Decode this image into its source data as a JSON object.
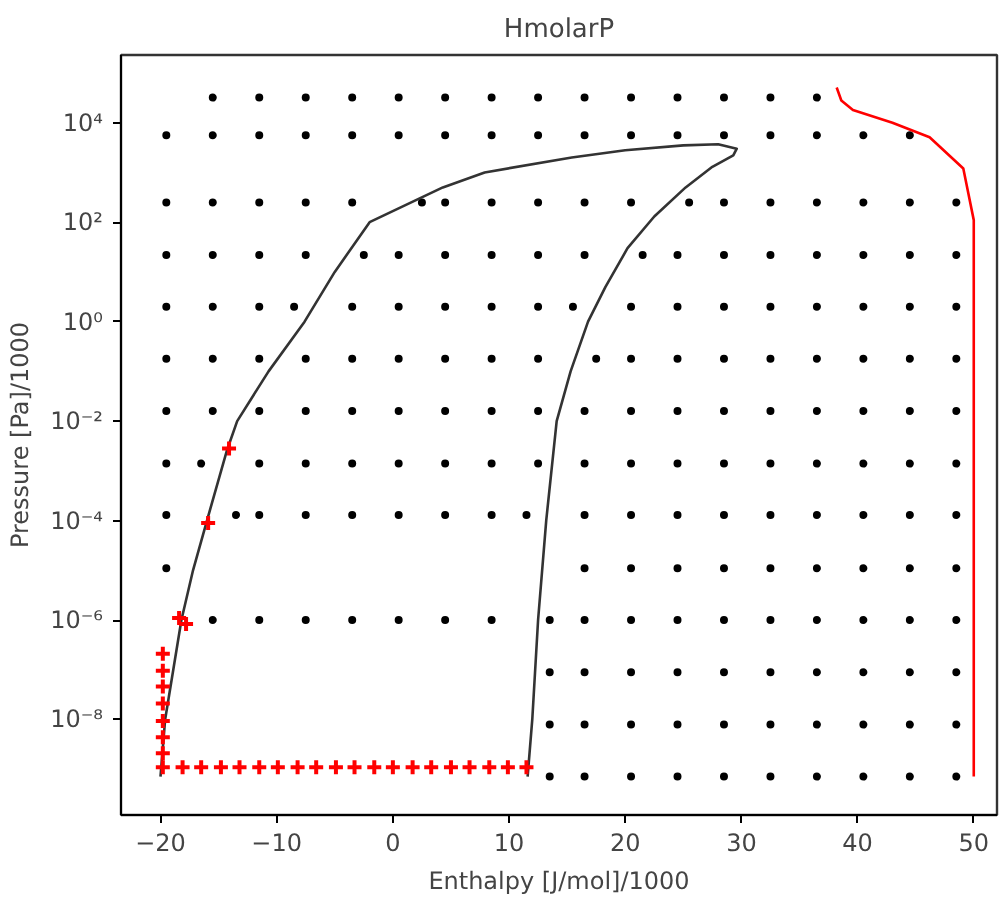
{
  "chart_data": {
    "type": "line",
    "title": "HmolarP",
    "xlabel": "Enthalpy [J/mol]/1000",
    "ylabel": "Pressure [Pa]/1000",
    "log": "y",
    "grid": false,
    "xlim": [
      -23.4,
      52.0
    ],
    "ylim": [
      1.2e-10,
      230000.0
    ],
    "xticks": [
      {
        "value": -20,
        "label": "−20"
      },
      {
        "value": -10,
        "label": "−10"
      },
      0,
      10,
      20,
      30,
      40,
      50
    ],
    "yticks": [
      {
        "value": 1e-08,
        "label": "10⁻⁸"
      },
      {
        "value": 1e-06,
        "label": "10⁻⁶"
      },
      {
        "value": 0.0001,
        "label": "10⁻⁴"
      },
      {
        "value": 0.01,
        "label": "10⁻²"
      },
      {
        "value": 1,
        "label": "10⁰"
      },
      {
        "value": 100,
        "label": "10²"
      },
      {
        "value": 10000,
        "label": "10⁴"
      }
    ],
    "series": [
      {
        "type": "scatter",
        "marker": "circle",
        "color": "#000000",
        "x": [
          13.5,
          16.5,
          20.5,
          24.5,
          28.5,
          32.5,
          36.5,
          40.5,
          44.5,
          48.5,
          13.5,
          16.5,
          20.5,
          24.5,
          28.5,
          32.5,
          36.5,
          40.5,
          44.5,
          48.5,
          13.5,
          16.5,
          20.5,
          24.5,
          28.5,
          32.5,
          36.5,
          40.5,
          44.5,
          48.5,
          -15.5,
          -11.5,
          -7.5,
          -3.5,
          0.5,
          4.5,
          8.5,
          13.5,
          16.5,
          20.5,
          24.5,
          28.5,
          32.5,
          36.5,
          40.5,
          44.5,
          48.5,
          -19.5,
          16.5,
          20.5,
          24.5,
          28.5,
          32.5,
          36.5,
          40.5,
          44.5,
          48.5,
          -19.5,
          -13.5,
          -11.5,
          -7.5,
          -3.5,
          0.5,
          4.5,
          8.5,
          11.5,
          16.5,
          20.5,
          24.5,
          28.5,
          32.5,
          36.5,
          40.5,
          44.5,
          48.5,
          -19.5,
          -16.5,
          -11.5,
          -7.5,
          -3.5,
          0.5,
          4.5,
          8.5,
          12.5,
          16.5,
          20.5,
          24.5,
          28.5,
          32.5,
          36.5,
          40.5,
          44.5,
          48.5,
          -19.5,
          -15.5,
          -11.5,
          -7.5,
          -3.5,
          0.5,
          4.5,
          8.5,
          12.5,
          16.5,
          20.5,
          24.5,
          28.5,
          32.5,
          36.5,
          40.5,
          44.5,
          48.5,
          -19.5,
          -15.5,
          -11.5,
          -7.5,
          -3.5,
          0.5,
          4.5,
          8.5,
          12.5,
          17.5,
          20.5,
          24.5,
          28.5,
          32.5,
          36.5,
          40.5,
          44.5,
          48.5,
          -19.5,
          -15.5,
          -11.5,
          -8.5,
          -3.5,
          0.5,
          4.5,
          8.5,
          12.5,
          15.5,
          20.5,
          24.5,
          28.5,
          32.5,
          36.5,
          40.5,
          44.5,
          48.5,
          -19.5,
          -15.5,
          -11.5,
          -7.5,
          -2.5,
          0.5,
          4.5,
          8.5,
          12.5,
          16.5,
          21.5,
          24.5,
          28.5,
          32.5,
          36.5,
          40.5,
          44.5,
          48.5,
          -19.5,
          -15.5,
          -11.5,
          -7.5,
          -3.5,
          2.5,
          4.5,
          8.5,
          12.5,
          16.5,
          20.5,
          25.5,
          28.5,
          32.5,
          36.5,
          40.5,
          44.5,
          48.5,
          -19.5,
          -15.5,
          -11.5,
          -7.5,
          -3.5,
          0.5,
          4.5,
          8.5,
          12.5,
          16.5,
          20.5,
          24.5,
          28.5,
          32.5,
          36.5,
          40.5,
          44.5,
          -15.5,
          -11.5,
          -7.5,
          -3.5,
          0.5,
          4.5,
          8.5,
          12.5,
          16.5,
          20.5,
          24.5,
          28.5,
          32.5,
          36.5
        ],
        "values": [
          7.1e-10,
          7.1e-10,
          7.1e-10,
          7.1e-10,
          7.1e-10,
          7.1e-10,
          7.1e-10,
          7.1e-10,
          7.1e-10,
          7.1e-10,
          7.9e-09,
          7.9e-09,
          7.9e-09,
          7.9e-09,
          7.9e-09,
          7.9e-09,
          7.9e-09,
          7.9e-09,
          7.9e-09,
          7.9e-09,
          8.9e-08,
          8.9e-08,
          8.9e-08,
          8.9e-08,
          8.9e-08,
          8.9e-08,
          8.9e-08,
          8.9e-08,
          8.9e-08,
          8.9e-08,
          1e-06,
          1e-06,
          1e-06,
          1e-06,
          1e-06,
          1e-06,
          1e-06,
          1e-06,
          1e-06,
          1e-06,
          1e-06,
          1e-06,
          1e-06,
          1e-06,
          1e-06,
          1e-06,
          1e-06,
          1.1e-05,
          1.1e-05,
          1.1e-05,
          1.1e-05,
          1.1e-05,
          1.1e-05,
          1.1e-05,
          1.1e-05,
          1.1e-05,
          1.1e-05,
          0.00013,
          0.00013,
          0.00013,
          0.00013,
          0.00013,
          0.00013,
          0.00013,
          0.00013,
          0.00013,
          0.00013,
          0.00013,
          0.00013,
          0.00013,
          0.00013,
          0.00013,
          0.00013,
          0.00013,
          0.00013,
          0.0014,
          0.0014,
          0.0014,
          0.0014,
          0.0014,
          0.0014,
          0.0014,
          0.0014,
          0.0014,
          0.0014,
          0.0014,
          0.0014,
          0.0014,
          0.0014,
          0.0014,
          0.0014,
          0.0014,
          0.0014,
          0.016,
          0.016,
          0.016,
          0.016,
          0.016,
          0.016,
          0.016,
          0.016,
          0.016,
          0.016,
          0.016,
          0.016,
          0.016,
          0.016,
          0.016,
          0.016,
          0.016,
          0.016,
          0.18,
          0.18,
          0.18,
          0.18,
          0.18,
          0.18,
          0.18,
          0.18,
          0.18,
          0.18,
          0.18,
          0.18,
          0.18,
          0.18,
          0.18,
          0.18,
          0.18,
          0.18,
          2,
          2,
          2,
          2,
          2,
          2,
          2,
          2,
          2,
          2,
          2,
          2,
          2,
          2,
          2,
          2,
          2,
          2,
          22,
          22,
          22,
          22,
          22,
          22,
          22,
          22,
          22,
          22,
          22,
          22,
          22,
          22,
          22,
          22,
          22,
          22,
          250,
          250,
          250,
          250,
          250,
          250,
          250,
          250,
          250,
          250,
          250,
          250,
          250,
          250,
          250,
          250,
          250,
          250,
          5600,
          5600,
          5600,
          5600,
          5600,
          5600,
          5600,
          5600,
          5600,
          5600,
          5600,
          5600,
          5600,
          5600,
          5600,
          5600,
          5600,
          32000,
          32000,
          32000,
          32000,
          32000,
          32000,
          32000,
          32000,
          32000,
          32000,
          32000,
          32000,
          32000,
          32000
        ]
      },
      {
        "marker": "none",
        "color": "#333333",
        "x": [
          -20.0,
          -19.6,
          -18.9,
          -18.2,
          -17.2,
          -16.0,
          -14.3,
          -13.4,
          -10.7,
          -7.6,
          -5.0,
          -2.0,
          4.3,
          7.9,
          15.4,
          20,
          25,
          28,
          29.6,
          29.3,
          27.5,
          25.2,
          22.5,
          20.2,
          18.3,
          16.8,
          15.3,
          14.1,
          13.2,
          12.5,
          12.0,
          11.6
        ],
        "values": [
          7.1e-10,
          1e-08,
          1e-07,
          1e-06,
          1e-05,
          0.0001,
          0.0025,
          0.01,
          0.1,
          1,
          10,
          100,
          500,
          1000,
          2000,
          2800,
          3500,
          3700,
          3000,
          2200,
          1300,
          500,
          130,
          30,
          5,
          1,
          0.1,
          0.01,
          0.0001,
          1e-06,
          1e-08,
          7.1e-10
        ]
      },
      {
        "type": "line",
        "marker": "none",
        "color": "#ff0000",
        "x": [
          38.2,
          38.6,
          39.6,
          43,
          46.2,
          49.1,
          50,
          50
        ],
        "values": [
          51000,
          28000,
          18000,
          10000,
          5100,
          1200,
          110,
          7.1e-10
        ]
      },
      {
        "type": "scatter",
        "marker": "cross",
        "color": "#ff0000",
        "x": [
          -19.8,
          -18.1,
          -16.5,
          -14.8,
          -13.2,
          -11.5,
          -9.9,
          -8.2,
          -6.6,
          -4.9,
          -3.3,
          -1.6,
          0.0,
          1.7,
          3.3,
          5.0,
          6.6,
          8.3,
          9.9,
          11.5,
          -19.8,
          -19.8,
          -19.8,
          -19.8,
          -19.8,
          -19.8,
          -19.8,
          -18.4,
          -17.8,
          -15.9,
          -14.1
        ],
        "values": [
          1.1e-09,
          1.1e-09,
          1.1e-09,
          1.1e-09,
          1.1e-09,
          1.1e-09,
          1.1e-09,
          1.1e-09,
          1.1e-09,
          1.1e-09,
          1.1e-09,
          1.1e-09,
          1.1e-09,
          1.1e-09,
          1.1e-09,
          1.1e-09,
          1.1e-09,
          1.1e-09,
          1.1e-09,
          1.1e-09,
          2.1e-07,
          9.5e-08,
          4.6e-08,
          2.1e-08,
          9.3e-09,
          4.4e-09,
          2.1e-09,
          1.1e-06,
          8.3e-07,
          8.9e-05,
          0.0028
        ]
      }
    ]
  }
}
